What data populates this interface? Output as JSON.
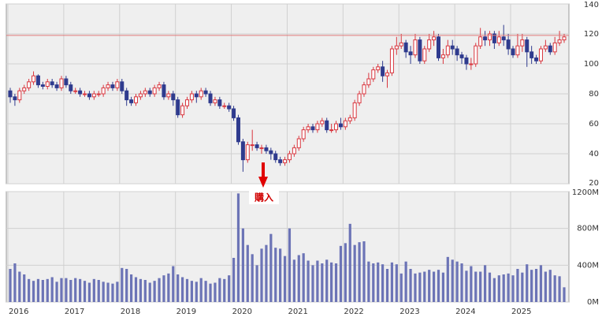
{
  "chart_data": [
    {
      "type": "candlestick",
      "annotation": "購入",
      "up_color": "#d9363e",
      "down_color": "#2f3b8e",
      "grid": true,
      "reference_line": {
        "value": 119,
        "color": "#e07a7a"
      },
      "ylim": [
        20,
        140
      ],
      "yticks": [
        20,
        40,
        60,
        80,
        100,
        120,
        140
      ],
      "open": [
        82,
        78,
        76,
        82,
        84,
        88,
        92,
        86,
        85,
        88,
        86,
        84,
        90,
        86,
        82,
        82,
        80,
        80,
        78,
        80,
        80,
        84,
        86,
        84,
        88,
        82,
        76,
        74,
        78,
        80,
        82,
        80,
        84,
        86,
        78,
        80,
        76,
        66,
        72,
        76,
        80,
        78,
        82,
        80,
        74,
        76,
        72,
        72,
        70,
        64,
        48,
        36,
        46,
        46,
        44,
        44,
        42,
        40,
        36,
        34,
        36,
        40,
        44,
        50,
        56,
        58,
        56,
        60,
        62,
        56,
        56,
        60,
        58,
        62,
        64,
        74,
        80,
        86,
        90,
        96,
        98,
        92,
        94,
        110,
        112,
        114,
        108,
        106,
        116,
        102,
        110,
        116,
        118,
        104,
        106,
        112,
        110,
        106,
        104,
        100,
        100,
        112,
        118,
        116,
        120,
        114,
        118,
        116,
        110,
        106,
        112,
        116,
        108,
        104,
        102,
        110,
        112,
        108,
        114,
        116
      ],
      "high": [
        84,
        80,
        84,
        86,
        90,
        95,
        93,
        88,
        90,
        90,
        88,
        92,
        92,
        88,
        84,
        84,
        82,
        82,
        82,
        82,
        86,
        88,
        88,
        90,
        90,
        84,
        78,
        80,
        82,
        84,
        84,
        86,
        88,
        88,
        82,
        82,
        78,
        74,
        78,
        82,
        82,
        84,
        84,
        82,
        78,
        78,
        74,
        74,
        72,
        66,
        50,
        48,
        56,
        48,
        46,
        46,
        44,
        42,
        38,
        38,
        42,
        46,
        52,
        58,
        60,
        60,
        62,
        64,
        64,
        60,
        62,
        64,
        64,
        66,
        76,
        82,
        88,
        94,
        98,
        100,
        102,
        96,
        112,
        118,
        120,
        116,
        112,
        120,
        118,
        112,
        120,
        122,
        120,
        110,
        116,
        116,
        112,
        108,
        106,
        104,
        114,
        124,
        122,
        122,
        122,
        122,
        126,
        120,
        112,
        120,
        120,
        118,
        112,
        106,
        112,
        116,
        114,
        118,
        122,
        120
      ],
      "low": [
        74,
        72,
        74,
        80,
        82,
        86,
        84,
        83,
        83,
        84,
        82,
        82,
        84,
        80,
        80,
        78,
        78,
        76,
        76,
        78,
        78,
        82,
        82,
        82,
        80,
        72,
        72,
        72,
        76,
        78,
        78,
        78,
        82,
        76,
        76,
        72,
        64,
        64,
        70,
        74,
        74,
        76,
        78,
        72,
        72,
        70,
        70,
        68,
        62,
        46,
        28,
        34,
        42,
        42,
        40,
        40,
        36,
        34,
        32,
        32,
        34,
        38,
        42,
        48,
        54,
        54,
        54,
        58,
        54,
        54,
        54,
        56,
        56,
        60,
        62,
        72,
        78,
        84,
        88,
        94,
        88,
        84,
        92,
        106,
        110,
        104,
        100,
        104,
        100,
        100,
        108,
        112,
        102,
        100,
        104,
        106,
        102,
        100,
        96,
        96,
        98,
        110,
        112,
        112,
        110,
        112,
        112,
        106,
        104,
        104,
        108,
        98,
        100,
        100,
        100,
        108,
        106,
        106,
        112,
        114
      ],
      "close": [
        78,
        76,
        82,
        84,
        88,
        92,
        86,
        85,
        88,
        86,
        84,
        90,
        86,
        82,
        82,
        80,
        80,
        78,
        80,
        80,
        84,
        86,
        84,
        88,
        82,
        76,
        74,
        78,
        80,
        82,
        80,
        84,
        86,
        78,
        80,
        76,
        66,
        72,
        76,
        80,
        78,
        82,
        80,
        74,
        76,
        72,
        72,
        70,
        64,
        48,
        36,
        46,
        46,
        44,
        44,
        42,
        40,
        36,
        34,
        36,
        40,
        44,
        50,
        56,
        58,
        56,
        60,
        62,
        56,
        56,
        60,
        58,
        62,
        64,
        74,
        80,
        86,
        90,
        96,
        98,
        92,
        94,
        110,
        112,
        114,
        108,
        106,
        116,
        102,
        110,
        116,
        118,
        104,
        106,
        112,
        110,
        106,
        104,
        100,
        100,
        112,
        118,
        116,
        120,
        114,
        118,
        116,
        110,
        106,
        112,
        116,
        108,
        104,
        102,
        110,
        112,
        108,
        114,
        116,
        118
      ]
    },
    {
      "type": "bar",
      "color": "#6c74b6",
      "grid": true,
      "ylim": [
        0,
        1200
      ],
      "yticks": [
        {
          "value": 0,
          "label": "0M"
        },
        {
          "value": 400,
          "label": "400M"
        },
        {
          "value": 800,
          "label": "800M"
        },
        {
          "value": 1200,
          "label": "1200M"
        }
      ],
      "categories": [
        "2016",
        null,
        null,
        null,
        null,
        null,
        null,
        null,
        null,
        null,
        null,
        null,
        "2017",
        null,
        null,
        null,
        null,
        null,
        null,
        null,
        null,
        null,
        null,
        null,
        "2018",
        null,
        null,
        null,
        null,
        null,
        null,
        null,
        null,
        null,
        null,
        null,
        "2019",
        null,
        null,
        null,
        null,
        null,
        null,
        null,
        null,
        null,
        null,
        null,
        "2020",
        null,
        null,
        null,
        null,
        null,
        null,
        null,
        null,
        null,
        null,
        null,
        "2021",
        null,
        null,
        null,
        null,
        null,
        null,
        null,
        null,
        null,
        null,
        null,
        "2022",
        null,
        null,
        null,
        null,
        null,
        null,
        null,
        null,
        null,
        null,
        null,
        "2023",
        null,
        null,
        null,
        null,
        null,
        null,
        null,
        null,
        null,
        null,
        null,
        "2024",
        null,
        null,
        null,
        null,
        null,
        null,
        null,
        null,
        null,
        null,
        null,
        "2025",
        null,
        null,
        null,
        null,
        null,
        null,
        null,
        null,
        null,
        null,
        null
      ],
      "values": [
        360,
        420,
        330,
        300,
        250,
        230,
        250,
        240,
        250,
        270,
        220,
        260,
        260,
        240,
        260,
        250,
        230,
        210,
        250,
        240,
        220,
        210,
        200,
        220,
        370,
        360,
        300,
        270,
        250,
        240,
        210,
        230,
        260,
        290,
        310,
        390,
        300,
        270,
        250,
        230,
        220,
        260,
        230,
        200,
        210,
        260,
        250,
        290,
        480,
        1180,
        800,
        620,
        520,
        400,
        580,
        620,
        740,
        590,
        580,
        500,
        800,
        460,
        510,
        530,
        450,
        400,
        450,
        420,
        460,
        430,
        420,
        610,
        640,
        850,
        620,
        650,
        660,
        440,
        420,
        430,
        410,
        360,
        430,
        410,
        310,
        440,
        360,
        310,
        320,
        330,
        350,
        330,
        350,
        320,
        490,
        460,
        440,
        420,
        340,
        390,
        330,
        330,
        400,
        320,
        260,
        290,
        300,
        310,
        290,
        360,
        320,
        410,
        350,
        360,
        400,
        330,
        350,
        290,
        280,
        160
      ]
    }
  ]
}
